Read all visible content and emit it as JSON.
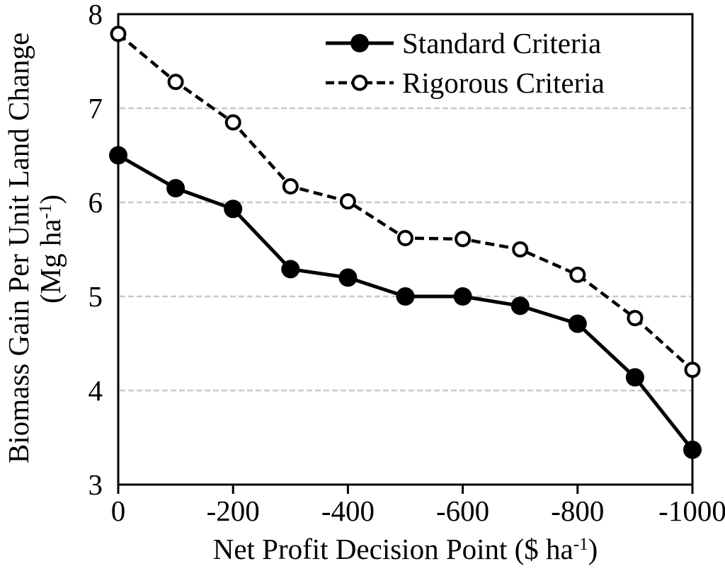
{
  "chart_data": {
    "type": "line",
    "x": [
      0,
      -100,
      -200,
      -300,
      -400,
      -500,
      -600,
      -700,
      -800,
      -900,
      -1000
    ],
    "series": [
      {
        "name": "Standard Criteria",
        "line_style": "solid",
        "marker": "filled-circle",
        "values": [
          6.5,
          6.15,
          5.93,
          5.29,
          5.2,
          5.0,
          5.0,
          4.9,
          4.71,
          4.14,
          3.37
        ]
      },
      {
        "name": "Rigorous Criteria",
        "line_style": "dashed",
        "marker": "open-circle",
        "values": [
          7.79,
          7.28,
          6.85,
          6.17,
          6.01,
          5.62,
          5.61,
          5.5,
          5.23,
          4.77,
          4.22
        ]
      }
    ],
    "xlabel": {
      "prefix": "Net Profit Decision Point ($ ha",
      "sup": "-1",
      "suffix": ")"
    },
    "ylabel": {
      "line1": "Biomass Gain Per Unit Land Change",
      "line2_prefix": "(Mg ha",
      "line2_sup": "-1",
      "line2_suffix": ")"
    },
    "xlim": [
      0,
      -1000
    ],
    "ylim": [
      3,
      8
    ],
    "x_ticks": [
      {
        "value": 0,
        "label": "0"
      },
      {
        "value": -200,
        "label": "-200"
      },
      {
        "value": -400,
        "label": "-400"
      },
      {
        "value": -600,
        "label": "-600"
      },
      {
        "value": -800,
        "label": "-800"
      },
      {
        "value": -1000,
        "label": "-1000"
      }
    ],
    "y_ticks": [
      {
        "value": 3,
        "label": "3"
      },
      {
        "value": 4,
        "label": "4"
      },
      {
        "value": 5,
        "label": "5"
      },
      {
        "value": 6,
        "label": "6"
      },
      {
        "value": 7,
        "label": "7"
      },
      {
        "value": 8,
        "label": "8"
      }
    ],
    "grid_y": [
      4,
      5,
      6,
      7
    ],
    "grid_style": "dashed",
    "legend_position": "top-right-inside",
    "colors": {
      "line": "#000000",
      "grid": "#c9c9c9",
      "background": "#ffffff",
      "text": "#000000"
    }
  }
}
